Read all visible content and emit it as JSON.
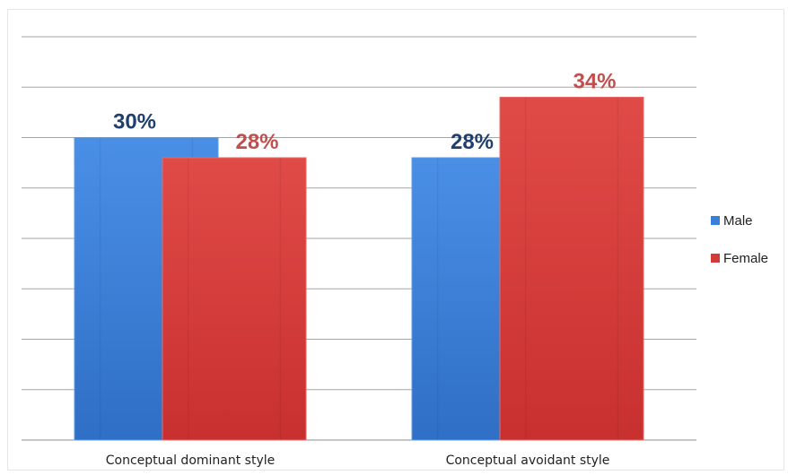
{
  "chart_data": {
    "type": "bar",
    "categories": [
      "Conceptual dominant style",
      "Conceptual avoidant style"
    ],
    "series": [
      {
        "name": "Male",
        "values": [
          30,
          28
        ],
        "labels": [
          "30%",
          "28%"
        ],
        "color": "#3a7fd9",
        "label_color": "#1f3f6e"
      },
      {
        "name": "Female",
        "values": [
          28,
          34
        ],
        "labels": [
          "28%",
          "34%"
        ],
        "color": "#d23b38",
        "label_color": "#c0504d"
      }
    ],
    "ylim": [
      0,
      40
    ],
    "gridlines": [
      0,
      5,
      10,
      15,
      20,
      25,
      30,
      35,
      40
    ],
    "grid": true,
    "legend": "right",
    "title": "",
    "xlabel": "",
    "ylabel": ""
  }
}
